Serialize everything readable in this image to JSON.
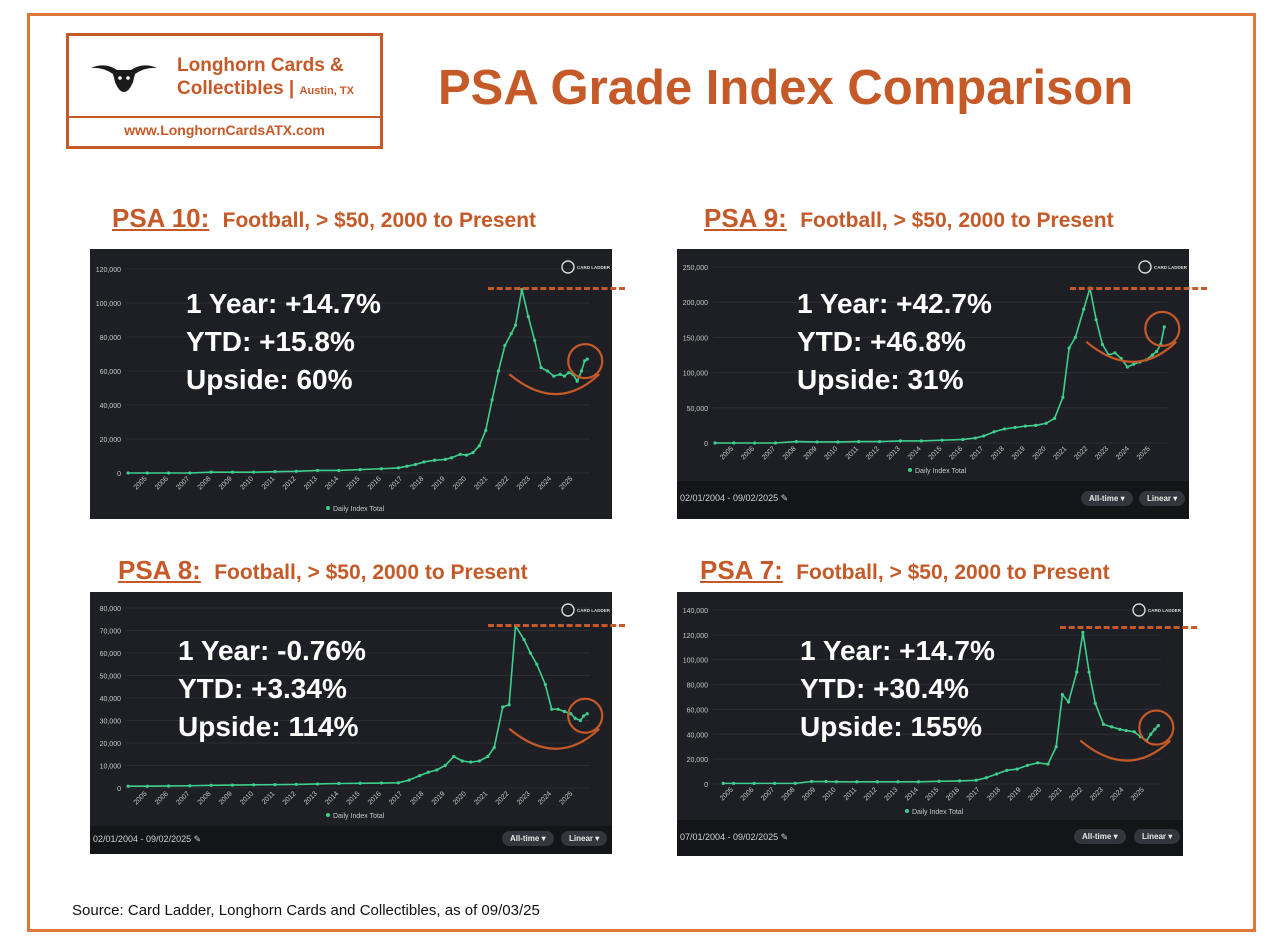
{
  "brand": {
    "name_line1": "Longhorn Cards &",
    "name_line2": "Collectibles |",
    "city": "Austin, TX",
    "url": "www.LonghornCardsATX.com",
    "logo_icon": "longhorn-icon",
    "accent_color": "#c55a28",
    "frame_color": "#e0763a"
  },
  "title": "PSA Grade Index Comparison",
  "source": "Source:  Card Ladder,   Longhorn Cards and Collectibles, as of 09/03/25",
  "chart_data": [
    {
      "id": "psa10",
      "type": "line",
      "grade_label": "PSA 10:",
      "subtitle": "Football, > $50, 2000 to Present",
      "stats": {
        "one_year": "1 Year: +14.7%",
        "ytd": "YTD: +15.8%",
        "upside": "Upside: 60%"
      },
      "legend": "Daily Index Total",
      "brand_mark": "CARD LADDER",
      "date_range": "",
      "controls": [],
      "ylim": [
        0,
        120000
      ],
      "yticks": [
        "0",
        "20,000",
        "40,000",
        "60,000",
        "80,000",
        "100,000",
        "120,000"
      ],
      "xticks": [
        "2005",
        "2006",
        "2007",
        "2008",
        "2009",
        "2010",
        "2011",
        "2012",
        "2013",
        "2014",
        "2015",
        "2016",
        "2017",
        "2018",
        "2019",
        "2020",
        "2021",
        "2022",
        "2023",
        "2024",
        "2025"
      ],
      "x": [
        2004.1,
        2005,
        2006,
        2007,
        2008,
        2009,
        2010,
        2011,
        2012,
        2013,
        2014,
        2015,
        2016,
        2016.8,
        2017.2,
        2017.6,
        2018,
        2018.5,
        2019,
        2019.3,
        2019.7,
        2020,
        2020.3,
        2020.6,
        2020.9,
        2021.2,
        2021.5,
        2021.8,
        2022.1,
        2022.3,
        2022.6,
        2022.9,
        2023.2,
        2023.5,
        2023.8,
        2024.1,
        2024.4,
        2024.6,
        2024.8,
        2025,
        2025.2,
        2025.4,
        2025.55,
        2025.67
      ],
      "values": [
        0,
        0,
        0,
        0,
        500,
        500,
        500,
        800,
        1000,
        1500,
        1500,
        2000,
        2500,
        3000,
        4000,
        5000,
        6500,
        7500,
        8000,
        9000,
        11000,
        10500,
        12000,
        16000,
        25000,
        43000,
        60000,
        75000,
        82000,
        87000,
        108000,
        92000,
        78000,
        62000,
        60000,
        57000,
        58000,
        57000,
        59000,
        58000,
        54000,
        60000,
        66000,
        67000
      ],
      "highlight": {
        "peak": 108000,
        "current": 67000
      }
    },
    {
      "id": "psa9",
      "type": "line",
      "grade_label": "PSA 9:",
      "subtitle": "Football, > $50, 2000 to Present",
      "stats": {
        "one_year": "1 Year: +42.7%",
        "ytd": "YTD: +46.8%",
        "upside": "Upside: 31%"
      },
      "legend": "Daily Index Total",
      "brand_mark": "CARD LADDER",
      "date_range": "02/01/2004 - 09/02/2025",
      "controls": [
        "All-time",
        "Linear"
      ],
      "ylim": [
        0,
        250000
      ],
      "yticks": [
        "0",
        "50,000",
        "100,000",
        "150,000",
        "200,000",
        "250,000"
      ],
      "xticks": [
        "2005",
        "2006",
        "2007",
        "2008",
        "2009",
        "2010",
        "2011",
        "2012",
        "2013",
        "2014",
        "2015",
        "2016",
        "2017",
        "2018",
        "2019",
        "2020",
        "2021",
        "2022",
        "2023",
        "2024",
        "2025"
      ],
      "x": [
        2004.1,
        2005,
        2006,
        2007,
        2008,
        2009,
        2010,
        2011,
        2012,
        2013,
        2014,
        2015,
        2016,
        2016.6,
        2017,
        2017.5,
        2018,
        2018.5,
        2019,
        2019.5,
        2020,
        2020.4,
        2020.8,
        2021.1,
        2021.4,
        2021.8,
        2022.1,
        2022.4,
        2022.7,
        2023,
        2023.3,
        2023.6,
        2023.9,
        2024.2,
        2024.5,
        2024.8,
        2025.1,
        2025.3,
        2025.5,
        2025.67
      ],
      "values": [
        0,
        0,
        0,
        0,
        2000,
        1500,
        1500,
        2000,
        2000,
        3000,
        3000,
        4000,
        5000,
        7000,
        10000,
        16000,
        20000,
        22000,
        24000,
        25000,
        28000,
        35000,
        65000,
        135000,
        150000,
        190000,
        220000,
        175000,
        140000,
        125000,
        128000,
        120000,
        108000,
        112000,
        115000,
        118000,
        125000,
        130000,
        140000,
        165000
      ],
      "highlight": {
        "peak": 220000,
        "current": 165000
      }
    },
    {
      "id": "psa8",
      "type": "line",
      "grade_label": "PSA 8:",
      "subtitle": "Football, > $50, 2000 to Present",
      "stats": {
        "one_year": "1 Year: -0.76%",
        "ytd": "YTD: +3.34%",
        "upside": "Upside: 114%"
      },
      "legend": "Daily Index Total",
      "brand_mark": "CARD LADDER",
      "date_range": "02/01/2004 - 09/02/2025",
      "controls": [
        "All-time",
        "Linear"
      ],
      "ylim": [
        0,
        80000
      ],
      "yticks": [
        "0",
        "10,000",
        "20,000",
        "30,000",
        "40,000",
        "50,000",
        "60,000",
        "70,000",
        "80,000"
      ],
      "xticks": [
        "2005",
        "2006",
        "2007",
        "2008",
        "2009",
        "2010",
        "2011",
        "2012",
        "2013",
        "2014",
        "2015",
        "2016",
        "2017",
        "2018",
        "2019",
        "2020",
        "2021",
        "2022",
        "2023",
        "2024",
        "2025"
      ],
      "x": [
        2004.1,
        2005,
        2006,
        2007,
        2008,
        2009,
        2010,
        2011,
        2012,
        2013,
        2014,
        2015,
        2016,
        2016.8,
        2017.3,
        2017.8,
        2018.2,
        2018.6,
        2019,
        2019.4,
        2019.8,
        2020.2,
        2020.6,
        2021,
        2021.3,
        2021.7,
        2022,
        2022.3,
        2022.7,
        2023,
        2023.3,
        2023.7,
        2024,
        2024.3,
        2024.6,
        2024.9,
        2025.1,
        2025.35,
        2025.5,
        2025.67
      ],
      "values": [
        800,
        800,
        900,
        1000,
        1200,
        1300,
        1400,
        1500,
        1600,
        1800,
        2000,
        2100,
        2200,
        2300,
        3500,
        5500,
        7000,
        8000,
        10000,
        14000,
        12000,
        11500,
        12000,
        14000,
        18000,
        36000,
        37000,
        72000,
        66000,
        60000,
        55000,
        46000,
        35000,
        35000,
        34000,
        33000,
        31000,
        30000,
        32000,
        33000
      ],
      "highlight": {
        "peak": 72000,
        "current": 33000
      }
    },
    {
      "id": "psa7",
      "type": "line",
      "grade_label": "PSA 7:",
      "subtitle": "Football, > $50, 2000 to Present",
      "stats": {
        "one_year": "1 Year: +14.7%",
        "ytd": "YTD: +30.4%",
        "upside": "Upside: 155%"
      },
      "legend": "Daily Index Total",
      "brand_mark": "CARD LADDER",
      "date_range": "07/01/2004 - 09/02/2025",
      "controls": [
        "All-time",
        "Linear"
      ],
      "ylim": [
        0,
        140000
      ],
      "yticks": [
        "0",
        "20,000",
        "40,000",
        "60,000",
        "80,000",
        "100,000",
        "120,000",
        "140,000"
      ],
      "xticks": [
        "2005",
        "2006",
        "2007",
        "2008",
        "2009",
        "2010",
        "2011",
        "2012",
        "2013",
        "2014",
        "2015",
        "2016",
        "2017",
        "2018",
        "2019",
        "2020",
        "2021",
        "2022",
        "2023",
        "2024",
        "2025"
      ],
      "x": [
        2004.5,
        2005,
        2006,
        2007,
        2008,
        2008.8,
        2009.5,
        2010,
        2011,
        2012,
        2013,
        2014,
        2015,
        2016,
        2016.8,
        2017.3,
        2017.8,
        2018.3,
        2018.8,
        2019.3,
        2019.8,
        2020.3,
        2020.7,
        2021,
        2021.3,
        2021.7,
        2022,
        2022.3,
        2022.6,
        2023,
        2023.4,
        2023.8,
        2024.1,
        2024.5,
        2024.8,
        2025.1,
        2025.3,
        2025.5,
        2025.67
      ],
      "values": [
        500,
        500,
        500,
        500,
        500,
        2000,
        2000,
        1800,
        1800,
        1800,
        1800,
        1800,
        2200,
        2500,
        3000,
        5000,
        8000,
        11000,
        12000,
        15000,
        17000,
        16000,
        30000,
        72000,
        66000,
        90000,
        122000,
        90000,
        65000,
        48000,
        46000,
        44000,
        43000,
        42000,
        38000,
        35000,
        40000,
        44000,
        47000
      ],
      "highlight": {
        "peak": 122000,
        "current": 47000
      }
    }
  ]
}
